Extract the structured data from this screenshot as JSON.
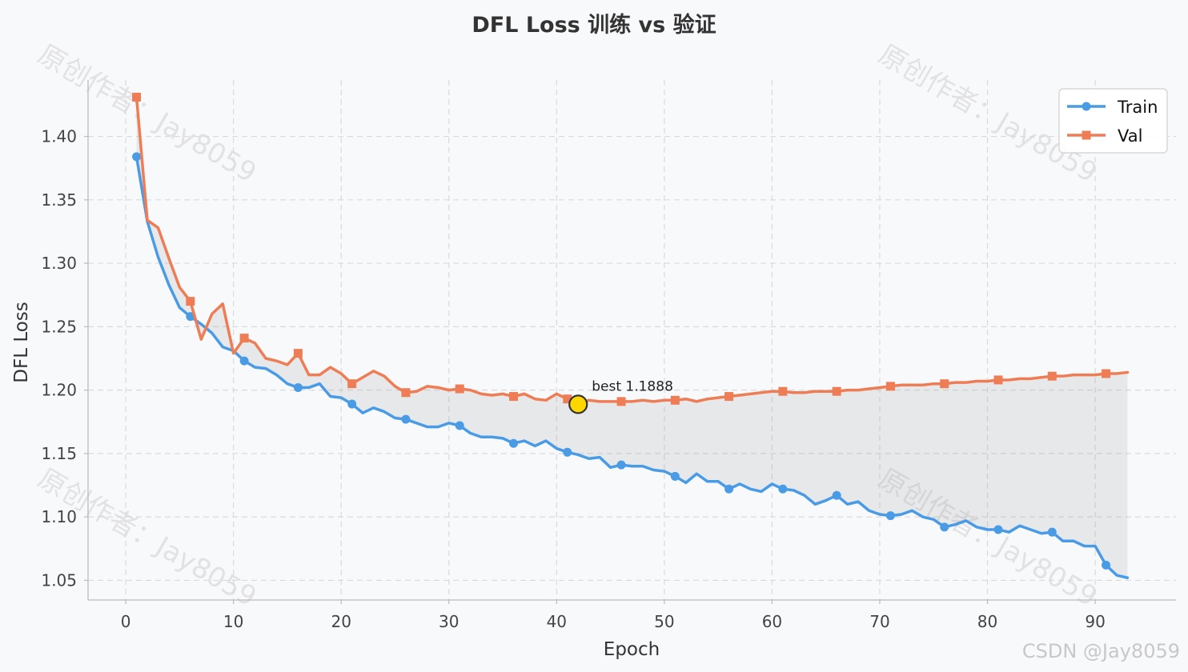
{
  "chart_data": {
    "type": "line",
    "title": "DFL Loss 训练 vs 验证",
    "xlabel": "Epoch",
    "ylabel": "DFL Loss",
    "xlim": [
      -3.5,
      97.5
    ],
    "ylim": [
      1.0345,
      1.4445
    ],
    "xticks": [
      0,
      10,
      20,
      30,
      40,
      50,
      60,
      70,
      80,
      90
    ],
    "yticks": [
      1.05,
      1.1,
      1.15,
      1.2,
      1.25,
      1.3,
      1.35,
      1.4
    ],
    "grid": true,
    "legend_position": "top-right",
    "fill_between": true,
    "series": [
      {
        "name": "Train",
        "color": "#4a9be6",
        "marker": "circle",
        "marker_every": 5,
        "x": [
          1,
          2,
          3,
          4,
          5,
          6,
          7,
          8,
          9,
          10,
          11,
          12,
          13,
          14,
          15,
          16,
          17,
          18,
          19,
          20,
          21,
          22,
          23,
          24,
          25,
          26,
          27,
          28,
          29,
          30,
          31,
          32,
          33,
          34,
          35,
          36,
          37,
          38,
          39,
          40,
          41,
          42,
          43,
          44,
          45,
          46,
          47,
          48,
          49,
          50,
          51,
          52,
          53,
          54,
          55,
          56,
          57,
          58,
          59,
          60,
          61,
          62,
          63,
          64,
          65,
          66,
          67,
          68,
          69,
          70,
          71,
          72,
          73,
          74,
          75,
          76,
          77,
          78,
          79,
          80,
          81,
          82,
          83,
          84,
          85,
          86,
          87,
          88,
          89,
          90,
          91,
          92,
          93
        ],
        "values": [
          1.384,
          1.333,
          1.305,
          1.283,
          1.265,
          1.258,
          1.252,
          1.245,
          1.234,
          1.231,
          1.223,
          1.218,
          1.217,
          1.212,
          1.205,
          1.202,
          1.202,
          1.205,
          1.195,
          1.194,
          1.189,
          1.182,
          1.186,
          1.183,
          1.178,
          1.177,
          1.174,
          1.171,
          1.171,
          1.174,
          1.172,
          1.166,
          1.163,
          1.163,
          1.162,
          1.158,
          1.16,
          1.156,
          1.16,
          1.154,
          1.151,
          1.149,
          1.146,
          1.147,
          1.139,
          1.141,
          1.14,
          1.14,
          1.137,
          1.136,
          1.132,
          1.127,
          1.134,
          1.128,
          1.128,
          1.122,
          1.126,
          1.122,
          1.12,
          1.126,
          1.122,
          1.121,
          1.117,
          1.11,
          1.113,
          1.117,
          1.11,
          1.112,
          1.105,
          1.102,
          1.101,
          1.102,
          1.105,
          1.1,
          1.098,
          1.092,
          1.094,
          1.097,
          1.092,
          1.09,
          1.09,
          1.088,
          1.093,
          1.09,
          1.087,
          1.088,
          1.081,
          1.081,
          1.077,
          1.077,
          1.062,
          1.054,
          1.052
        ]
      },
      {
        "name": "Val",
        "color": "#ee7d55",
        "marker": "square",
        "marker_every": 5,
        "x": [
          1,
          2,
          3,
          4,
          5,
          6,
          7,
          8,
          9,
          10,
          11,
          12,
          13,
          14,
          15,
          16,
          17,
          18,
          19,
          20,
          21,
          22,
          23,
          24,
          25,
          26,
          27,
          28,
          29,
          30,
          31,
          32,
          33,
          34,
          35,
          36,
          37,
          38,
          39,
          40,
          41,
          42,
          43,
          44,
          45,
          46,
          47,
          48,
          49,
          50,
          51,
          52,
          53,
          54,
          55,
          56,
          57,
          58,
          59,
          60,
          61,
          62,
          63,
          64,
          65,
          66,
          67,
          68,
          69,
          70,
          71,
          72,
          73,
          74,
          75,
          76,
          77,
          78,
          79,
          80,
          81,
          82,
          83,
          84,
          85,
          86,
          87,
          88,
          89,
          90,
          91,
          92,
          93
        ],
        "values": [
          1.431,
          1.334,
          1.328,
          1.304,
          1.281,
          1.27,
          1.24,
          1.26,
          1.268,
          1.229,
          1.241,
          1.237,
          1.225,
          1.223,
          1.22,
          1.229,
          1.212,
          1.212,
          1.218,
          1.213,
          1.205,
          1.21,
          1.215,
          1.211,
          1.203,
          1.198,
          1.199,
          1.203,
          1.202,
          1.2,
          1.201,
          1.2,
          1.197,
          1.196,
          1.197,
          1.195,
          1.197,
          1.193,
          1.192,
          1.197,
          1.193,
          1.1888,
          1.192,
          1.191,
          1.191,
          1.191,
          1.191,
          1.192,
          1.191,
          1.192,
          1.192,
          1.193,
          1.191,
          1.193,
          1.194,
          1.195,
          1.196,
          1.197,
          1.198,
          1.199,
          1.199,
          1.198,
          1.198,
          1.199,
          1.199,
          1.199,
          1.2,
          1.2,
          1.201,
          1.202,
          1.203,
          1.204,
          1.204,
          1.204,
          1.205,
          1.205,
          1.206,
          1.206,
          1.207,
          1.207,
          1.208,
          1.208,
          1.209,
          1.209,
          1.21,
          1.211,
          1.211,
          1.212,
          1.212,
          1.212,
          1.213,
          1.213,
          1.214
        ]
      }
    ],
    "annotation": {
      "label": "best 1.1888",
      "x": 42,
      "y": 1.1888,
      "marker_color": "#ffd700"
    },
    "watermark_text": "原创作者：Jay8059",
    "credit_text": "CSDN @Jay8059"
  }
}
